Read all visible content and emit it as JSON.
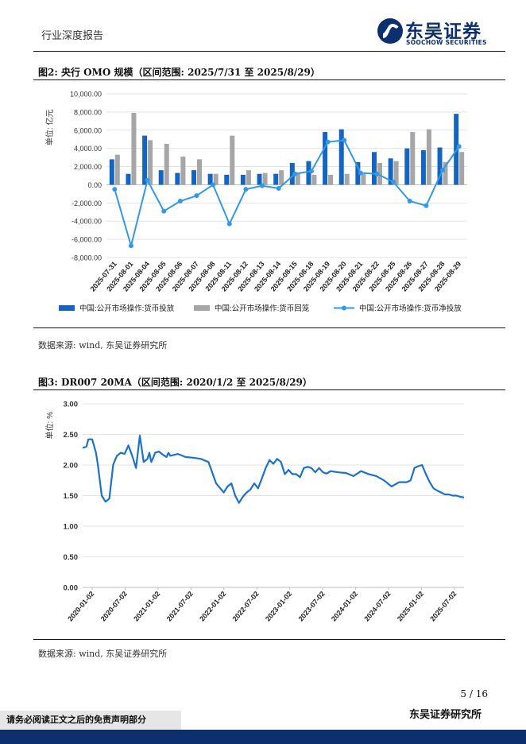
{
  "header": {
    "report_type": "行业深度报告",
    "logo_cn": "东吴证券",
    "logo_en": "SOOCHOW SECURITIES"
  },
  "figure2": {
    "title": "图2: 央行 OMO 规模（区间范围: 2025/7/31 至 2025/8/29）",
    "source": "数据来源: wind, 东吴证券研究所"
  },
  "figure3": {
    "title": "图3: DR007 20MA（区间范围: 2020/1/2 至 2025/8/29）",
    "source": "数据来源: wind, 东吴证券研究所"
  },
  "footer": {
    "page": "5 / 16",
    "org": "东吴证券研究所",
    "disclaimer": "请务必阅读正文之后的免责声明部分"
  },
  "colors": {
    "injection": "#1565c0",
    "withdrawal": "#a6a6a6",
    "net": "#3399e6",
    "dr007": "#1a73c8",
    "brand": "#0d2f6e"
  },
  "chart_data": [
    {
      "type": "bar",
      "title": "央行 OMO 规模",
      "ylabel": "单位: 亿元",
      "ylim": [
        -8000,
        10000
      ],
      "yticks": [
        10000,
        8000,
        6000,
        4000,
        2000,
        0,
        -2000,
        -4000,
        -6000,
        -8000
      ],
      "ytick_labels": [
        "10,000.00",
        "8,000.00",
        "6,000.00",
        "4,000.00",
        "2,000.00",
        "0.00",
        "-2,000.00",
        "-4,000.00",
        "-6,000.00",
        "-8,000.00"
      ],
      "categories": [
        "2025-07-31",
        "2025-08-01",
        "2025-08-04",
        "2025-08-05",
        "2025-08-06",
        "2025-08-07",
        "2025-08-08",
        "2025-08-11",
        "2025-08-12",
        "2025-08-13",
        "2025-08-14",
        "2025-08-15",
        "2025-08-18",
        "2025-08-19",
        "2025-08-20",
        "2025-08-21",
        "2025-08-22",
        "2025-08-25",
        "2025-08-26",
        "2025-08-27",
        "2025-08-28",
        "2025-08-29"
      ],
      "series": [
        {
          "name": "中国:公开市场操作:货币投放",
          "kind": "bar",
          "values": [
            2800,
            1200,
            5400,
            1600,
            1300,
            1600,
            1200,
            1100,
            1100,
            1200,
            1200,
            2400,
            2600,
            5800,
            6100,
            2500,
            3600,
            2900,
            4000,
            3800,
            4100,
            7800
          ]
        },
        {
          "name": "中国:公开市场操作:货币回笼",
          "kind": "bar",
          "values": [
            3300,
            7900,
            4900,
            4500,
            3100,
            2800,
            1200,
            5400,
            1600,
            1300,
            1600,
            1200,
            1100,
            1100,
            1200,
            1200,
            2400,
            2600,
            5800,
            6100,
            2500,
            3600
          ]
        },
        {
          "name": "中国:公开市场操作:货币净投放",
          "kind": "line",
          "values": [
            -500,
            -6700,
            500,
            -2900,
            -1800,
            -1200,
            0,
            -4300,
            -500,
            -100,
            -400,
            1200,
            1500,
            4700,
            4900,
            1300,
            1200,
            300,
            -1800,
            -2300,
            1600,
            4200
          ]
        }
      ]
    },
    {
      "type": "line",
      "title": "DR007 20MA",
      "ylabel": "单位: %",
      "ylim": [
        0,
        3
      ],
      "yticks": [
        3,
        2.5,
        2,
        1.5,
        1,
        0.5,
        0
      ],
      "ytick_labels": [
        "3.00",
        "2.50",
        "2.00",
        "1.50",
        "1.00",
        "0.50",
        "0.00"
      ],
      "x_start": "2020-01-02",
      "x_end": "2025-08-29",
      "xtick_labels": [
        "2020-01-02",
        "2020-07-02",
        "2021-01-02",
        "2021-07-02",
        "2022-01-02",
        "2022-07-02",
        "2023-01-02",
        "2023-07-02",
        "2024-01-02",
        "2024-07-02",
        "2025-01-02",
        "2025-07-02"
      ],
      "series": [
        {
          "name": "DR007 20MA",
          "x": [
            0,
            0.01,
            0.015,
            0.025,
            0.035,
            0.04,
            0.045,
            0.05,
            0.06,
            0.07,
            0.08,
            0.085,
            0.09,
            0.1,
            0.11,
            0.12,
            0.13,
            0.14,
            0.15,
            0.16,
            0.17,
            0.175,
            0.18,
            0.185,
            0.19,
            0.2,
            0.21,
            0.22,
            0.225,
            0.23,
            0.25,
            0.27,
            0.29,
            0.31,
            0.33,
            0.35,
            0.37,
            0.38,
            0.39,
            0.4,
            0.41,
            0.42,
            0.43,
            0.44,
            0.45,
            0.46,
            0.47,
            0.48,
            0.49,
            0.5,
            0.51,
            0.52,
            0.53,
            0.54,
            0.55,
            0.56,
            0.57,
            0.58,
            0.59,
            0.6,
            0.61,
            0.62,
            0.63,
            0.64,
            0.65,
            0.67,
            0.69,
            0.71,
            0.73,
            0.75,
            0.77,
            0.79,
            0.81,
            0.83,
            0.85,
            0.86,
            0.87,
            0.88,
            0.89,
            0.9,
            0.91,
            0.92,
            0.93,
            0.94,
            0.95,
            0.96,
            0.97,
            0.98,
            0.99,
            1.0
          ],
          "values": [
            2.28,
            2.3,
            2.42,
            2.42,
            2.2,
            2.0,
            1.75,
            1.5,
            1.4,
            1.45,
            2.0,
            2.08,
            2.15,
            2.2,
            2.18,
            2.32,
            2.15,
            1.95,
            2.48,
            2.05,
            2.1,
            2.2,
            2.05,
            2.12,
            2.2,
            2.22,
            2.17,
            2.13,
            2.2,
            2.15,
            2.18,
            2.13,
            2.12,
            2.1,
            2.05,
            1.7,
            1.55,
            1.65,
            1.7,
            1.5,
            1.38,
            1.48,
            1.55,
            1.6,
            1.7,
            1.62,
            1.78,
            1.95,
            2.08,
            2.02,
            2.1,
            2.05,
            1.85,
            1.92,
            1.85,
            1.85,
            1.8,
            1.95,
            1.97,
            1.95,
            1.88,
            1.95,
            1.88,
            1.86,
            1.9,
            1.88,
            1.87,
            1.82,
            1.9,
            1.85,
            1.82,
            1.75,
            1.65,
            1.72,
            1.72,
            1.75,
            1.95,
            1.98,
            2.0,
            1.85,
            1.72,
            1.62,
            1.58,
            1.55,
            1.52,
            1.52,
            1.5,
            1.5,
            1.48,
            1.47
          ]
        }
      ]
    }
  ]
}
